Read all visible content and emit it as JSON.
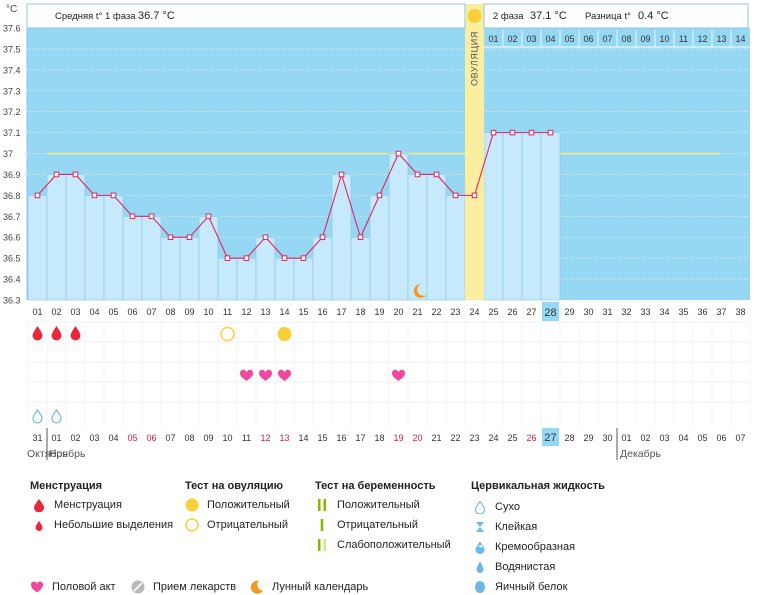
{
  "chart_data": {
    "type": "line",
    "unit_label": "°C",
    "y_ticks": [
      "37.6",
      "37.5",
      "37.4",
      "37.3",
      "37.2",
      "37.1",
      "37",
      "36.9",
      "36.8",
      "36.7",
      "36.6",
      "36.5",
      "36.4",
      "36.3"
    ],
    "ylim": [
      36.3,
      37.6
    ],
    "cycle_days": [
      "01",
      "02",
      "03",
      "04",
      "05",
      "06",
      "07",
      "08",
      "09",
      "10",
      "11",
      "12",
      "13",
      "14",
      "15",
      "16",
      "17",
      "18",
      "19",
      "20",
      "21",
      "22",
      "23",
      "24",
      "25",
      "26",
      "27",
      "28",
      "29",
      "30",
      "31",
      "32",
      "33",
      "34",
      "35",
      "36",
      "37",
      "38"
    ],
    "temperatures": [
      36.8,
      36.9,
      36.9,
      36.8,
      36.8,
      36.7,
      36.7,
      36.6,
      36.6,
      36.7,
      36.5,
      36.5,
      36.6,
      36.5,
      36.5,
      36.6,
      36.9,
      36.6,
      36.8,
      37.0,
      36.9,
      36.9,
      36.8,
      36.8,
      37.1,
      37.1,
      37.1,
      37.1
    ],
    "coverline": 37.0,
    "ovulation_day": 24,
    "ovulation_label": "ОВУЛЯЦИЯ",
    "current_day": "28",
    "phase2_days": [
      "01",
      "02",
      "03",
      "04",
      "05",
      "06",
      "07",
      "08",
      "09",
      "10",
      "11",
      "12",
      "13",
      "14"
    ],
    "header": {
      "phase1_label": "Средняя t° 1 фаза",
      "phase1_value": "36.7 °C",
      "phase2_label": "2 фаза",
      "phase2_value": "37.1 °C",
      "diff_label": "Разница t°",
      "diff_value": "0.4 °C"
    },
    "moon_day": 21,
    "markers": {
      "menstruation_days": [
        1,
        2,
        3
      ],
      "ovulation_test_negative_days": [
        11
      ],
      "ovulation_test_positive_days": [
        14
      ],
      "intercourse_days": [
        12,
        13,
        14,
        20
      ],
      "dry_mucus_days": [
        1,
        2
      ]
    },
    "dates": [
      "31",
      "01",
      "02",
      "03",
      "04",
      "05",
      "06",
      "07",
      "08",
      "09",
      "10",
      "11",
      "12",
      "13",
      "14",
      "15",
      "16",
      "17",
      "18",
      "19",
      "20",
      "21",
      "22",
      "23",
      "24",
      "25",
      "26",
      "27",
      "28",
      "29",
      "30",
      "01",
      "02",
      "03",
      "04",
      "05",
      "06",
      "07"
    ],
    "dates_red": [
      6,
      7,
      13,
      14,
      20,
      21,
      27
    ],
    "current_date_index": 28,
    "month_labels": {
      "oct": "Октябрь",
      "nov": "Ноябрь",
      "dec": "Декабрь"
    },
    "colors": {
      "bg_blue": "#96d8f4",
      "bar_fill": "#c6eafc",
      "bar_stroke": "#84c5e8",
      "line": "#e0245e",
      "ovulation": "#fbeea0",
      "coverline": "#ecec8e",
      "current_day": "#96d8f4"
    }
  },
  "legend": {
    "menstruation": {
      "title": "Менструация",
      "items": [
        "Менструация",
        "Небольшие выделения"
      ]
    },
    "ovulation_test": {
      "title": "Тест на овуляцию",
      "items": [
        "Положительный",
        "Отрицательный"
      ]
    },
    "pregnancy_test": {
      "title": "Тест на беременность",
      "items": [
        "Положительный",
        "Отрицательный",
        "Слабоположительный"
      ]
    },
    "cervical": {
      "title": "Цервикальная жидкость",
      "items": [
        "Сухо",
        "Клейкая",
        "Кремообразная",
        "Водянистая",
        "Яичный белок"
      ]
    },
    "bottom": [
      "Половой акт",
      "Прием лекарств",
      "Лунный календарь"
    ]
  }
}
